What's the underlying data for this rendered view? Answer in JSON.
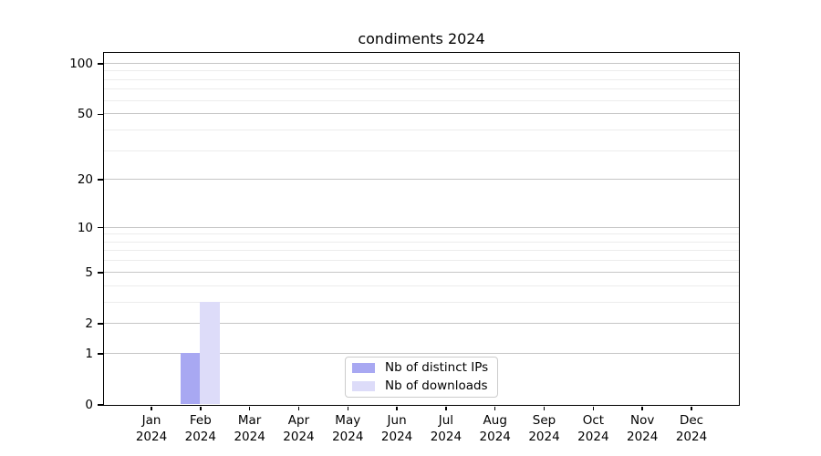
{
  "title": "condiments 2024",
  "legend": {
    "items": [
      {
        "label": "Nb of distinct IPs",
        "color": "#a8a8f2"
      },
      {
        "label": "Nb of downloads",
        "color": "#dddcf9"
      }
    ]
  },
  "chart_data": {
    "type": "bar",
    "title": "condiments 2024",
    "categories": [
      "Jan 2024",
      "Feb 2024",
      "Mar 2024",
      "Apr 2024",
      "May 2024",
      "Jun 2024",
      "Jul 2024",
      "Aug 2024",
      "Sep 2024",
      "Oct 2024",
      "Nov 2024",
      "Dec 2024"
    ],
    "series": [
      {
        "name": "Nb of distinct IPs",
        "color": "#a8a8f2",
        "values": [
          0,
          1,
          0,
          0,
          0,
          0,
          0,
          0,
          0,
          0,
          0,
          0
        ]
      },
      {
        "name": "Nb of downloads",
        "color": "#dddcf9",
        "values": [
          0,
          3,
          0,
          0,
          0,
          0,
          0,
          0,
          0,
          0,
          0,
          0
        ]
      }
    ],
    "xlabel": "",
    "ylabel": "",
    "yscale": "log1p",
    "ylim": [
      0,
      116
    ],
    "ytick_values": [
      0,
      1,
      2,
      5,
      10,
      20,
      50,
      100
    ],
    "ytick_labels": [
      "0",
      "1",
      "2",
      "5",
      "10",
      "20",
      "50",
      "100"
    ],
    "minor_gridline_values": [
      3,
      4,
      6,
      7,
      8,
      9,
      30,
      40,
      60,
      70,
      80,
      90
    ],
    "grid": true,
    "legend_position": "lower center"
  },
  "colors": {
    "major_grid": "#c6c6c6",
    "minor_grid": "#ececec",
    "spine": "#000000",
    "text": "#000000",
    "legend_border": "#cccccc",
    "background": "#ffffff"
  }
}
